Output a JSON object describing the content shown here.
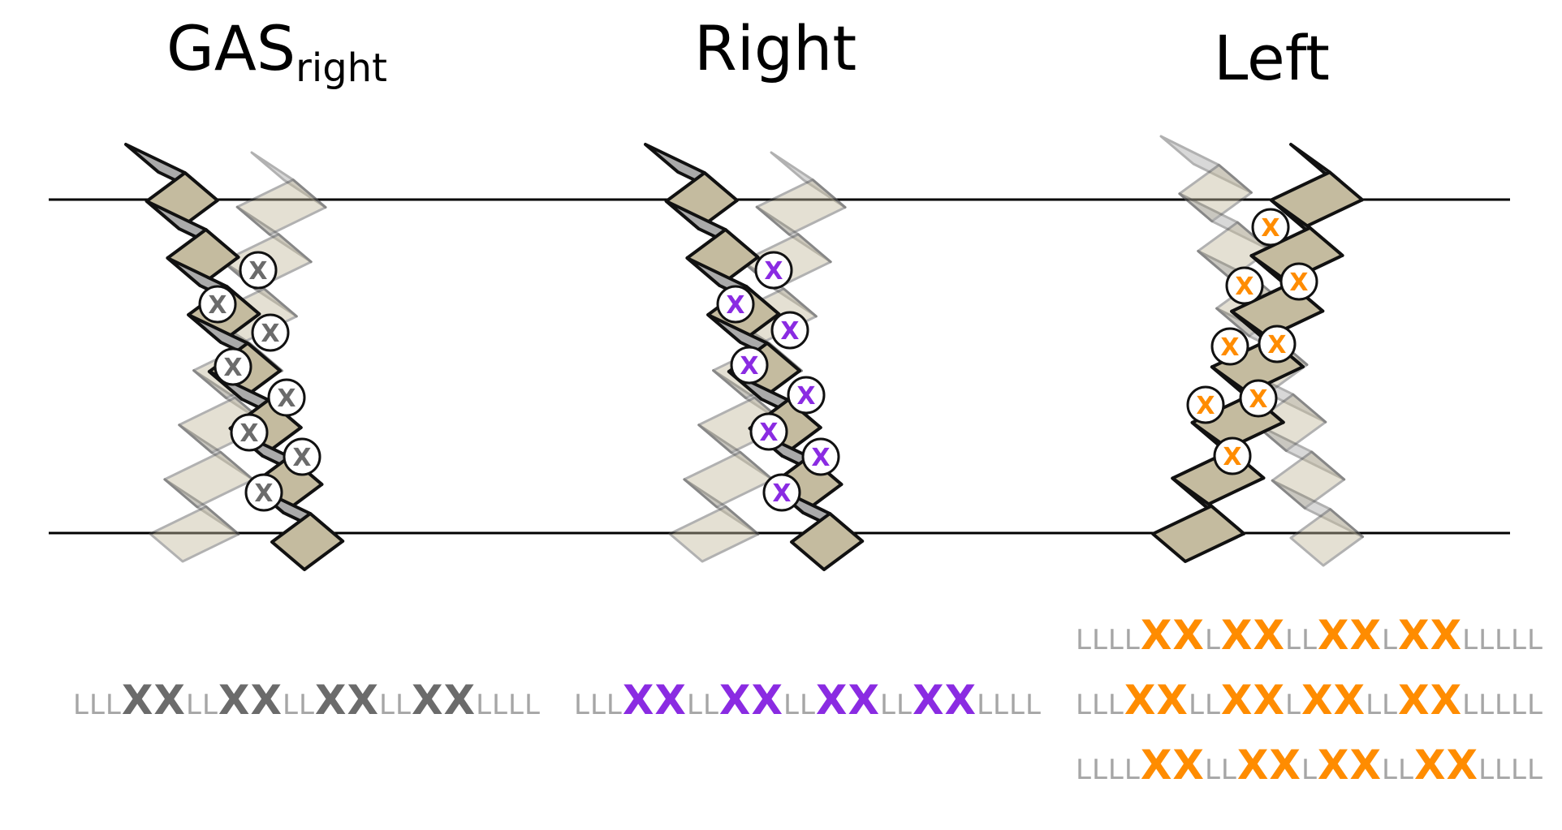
{
  "panels": [
    {
      "title_main": "GAS",
      "title_sub": "right"
    },
    {
      "title_main": "Right"
    },
    {
      "title_main": "Left"
    }
  ],
  "marker_label": "X",
  "colors": {
    "gas_right": "#6b6b6b",
    "right": "#8a2be2",
    "left": "#ff8c00",
    "background_L": "#a6a6a6",
    "membrane": "#000000",
    "helix_dark": "#aaaaaa",
    "helix_tan": "#c4bb9f"
  },
  "sequences": {
    "gas_right": "LLLXXLLXXLLXXLLXXLLLL",
    "right": "LLLXXLLXXLLXXLLXXLLLL",
    "left": [
      "LLLLXXLXXLLXXLXXLLLLL",
      "LLLXXLLXXLXXLLXXLLLLL",
      "LLLLXXLLXXLXXLLXXLLLL"
    ]
  }
}
